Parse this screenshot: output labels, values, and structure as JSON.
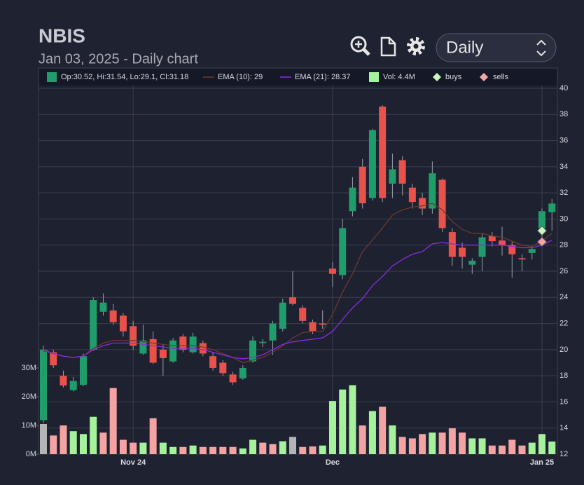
{
  "header": {
    "title": "NBIS",
    "subtitle": "Jan 03, 2025 - Daily chart",
    "select": "Daily"
  },
  "chart_data": {
    "type": "candlestick",
    "categories": [
      null,
      null,
      null,
      null,
      null,
      null,
      null,
      null,
      null,
      "Nov 24",
      null,
      null,
      null,
      null,
      null,
      null,
      null,
      null,
      null,
      null,
      null,
      null,
      null,
      null,
      null,
      null,
      null,
      null,
      null,
      "Dec",
      null,
      null,
      null,
      null,
      null,
      null,
      null,
      null,
      null,
      null,
      null,
      null,
      null,
      null,
      null,
      null,
      null,
      null,
      null,
      null,
      "Jan 25",
      null
    ],
    "open": [
      14.6,
      19.8,
      18.0,
      16.9,
      17.3,
      20.0,
      22.9,
      23.0,
      22.6,
      21.8,
      19.7,
      20.8,
      20.0,
      19.1,
      21.0,
      19.8,
      20.5,
      19.5,
      19.0,
      18.1,
      17.8,
      19.1,
      20.5,
      20.7,
      21.6,
      24.0,
      23.2,
      22.1,
      22.0,
      26.2,
      25.7,
      30.6,
      34.0,
      31.6,
      38.6,
      32.7,
      34.5,
      32.4,
      31.6,
      30.8,
      33.0,
      29.0,
      27.8,
      26.5,
      27.1,
      28.7,
      28.35,
      28.0,
      27.0,
      27.4,
      29.3,
      30.52
    ],
    "high": [
      20.3,
      20.0,
      18.4,
      17.9,
      19.7,
      24.0,
      24.3,
      23.5,
      22.8,
      22.2,
      21.9,
      21.4,
      20.4,
      20.9,
      21.2,
      21.3,
      20.7,
      19.8,
      19.2,
      18.3,
      18.8,
      21.0,
      20.8,
      22.2,
      23.9,
      26.0,
      23.4,
      22.3,
      23.0,
      26.7,
      30.0,
      33.2,
      34.6,
      36.9,
      38.7,
      35.0,
      34.8,
      32.7,
      32.0,
      34.4,
      33.1,
      29.3,
      28.2,
      27.0,
      28.9,
      29.0,
      29.4,
      28.3,
      27.3,
      27.9,
      30.8,
      31.54
    ],
    "low": [
      14.4,
      18.6,
      17.1,
      16.8,
      17.2,
      19.9,
      22.6,
      21.9,
      21.0,
      20.0,
      19.6,
      18.9,
      18.0,
      19.0,
      19.8,
      19.7,
      19.5,
      18.4,
      18.0,
      17.3,
      17.7,
      19.0,
      20.2,
      19.6,
      21.4,
      23.4,
      22.0,
      21.2,
      21.6,
      24.8,
      25.4,
      30.2,
      30.8,
      31.4,
      31.3,
      31.6,
      31.8,
      30.8,
      30.3,
      30.4,
      29.0,
      26.4,
      26.2,
      25.8,
      26.0,
      27.9,
      27.2,
      25.5,
      26.0,
      26.9,
      28.5,
      29.1
    ],
    "close": [
      20.0,
      18.8,
      17.25,
      17.6,
      19.5,
      23.8,
      23.6,
      22.1,
      21.4,
      20.3,
      20.7,
      19.0,
      19.35,
      20.7,
      20.0,
      21.0,
      19.7,
      18.6,
      18.2,
      17.5,
      18.6,
      20.7,
      20.6,
      22.0,
      23.6,
      23.5,
      22.2,
      21.4,
      21.9,
      25.8,
      29.3,
      32.4,
      31.2,
      36.8,
      31.6,
      33.8,
      32.7,
      31.3,
      30.8,
      33.5,
      29.3,
      27.1,
      27.1,
      26.8,
      28.6,
      28.3,
      28.0,
      27.3,
      26.9,
      27.7,
      30.6,
      31.18
    ],
    "colors": {
      "up": "#1f9d6b",
      "down": "#e8524a"
    },
    "ylim": [
      12,
      40
    ],
    "yticks": [
      12,
      14,
      16,
      18,
      20,
      22,
      24,
      26,
      28,
      30,
      32,
      34,
      36,
      38,
      40
    ],
    "grid": true,
    "legend": {
      "ohlc": "Op:30.52, Hi:31.54, Lo:29.1, Cl:31.18"
    },
    "series": [
      {
        "name": "EMA (10): 29",
        "color": "#6b3a2a",
        "values": [
          19.9,
          19.7,
          19.5,
          19.4,
          19.5,
          20.1,
          20.5,
          20.7,
          20.7,
          20.7,
          20.6,
          20.5,
          20.4,
          20.3,
          20.3,
          20.3,
          20.2,
          20.0,
          19.7,
          19.4,
          19.0,
          19.2,
          19.4,
          19.8,
          20.3,
          20.9,
          21.3,
          21.4,
          21.4,
          22.7,
          24.4,
          25.8,
          27.5,
          28.4,
          29.3,
          30.3,
          30.7,
          30.9,
          31.0,
          31.2,
          30.7,
          29.8,
          29.2,
          28.9,
          28.9,
          28.7,
          28.6,
          28.3,
          28.0,
          27.9,
          28.3,
          28.9
        ]
      },
      {
        "name": "EMA (21): 28.37",
        "color": "#8a2be2",
        "values": [
          20.0,
          19.7,
          19.5,
          19.4,
          19.5,
          20.0,
          20.3,
          20.5,
          20.5,
          20.5,
          20.4,
          20.3,
          20.2,
          20.1,
          20.1,
          20.1,
          20.0,
          19.8,
          19.6,
          19.4,
          19.3,
          19.4,
          19.6,
          20.0,
          20.4,
          20.6,
          20.7,
          20.8,
          20.9,
          21.4,
          22.3,
          23.2,
          23.9,
          24.9,
          25.6,
          26.4,
          26.9,
          27.3,
          27.5,
          28.1,
          28.2,
          28.1,
          28.0,
          28.0,
          28.0,
          28.0,
          28.0,
          27.9,
          27.8,
          27.8,
          28.0,
          28.37
        ]
      }
    ],
    "volume": {
      "name": "Vol: 4.4M",
      "color": "#a6f29c",
      "values": [
        10.5,
        6.5,
        10,
        8,
        7,
        13,
        7.5,
        23,
        5,
        4,
        4,
        12.5,
        4,
        2.5,
        2.5,
        3,
        2.5,
        2.5,
        2.5,
        2.5,
        2,
        5,
        4,
        3.5,
        4.5,
        6,
        2.5,
        2.7,
        3,
        18.5,
        22.5,
        24,
        10,
        15,
        16.5,
        10,
        6,
        5.5,
        7,
        7.5,
        7.5,
        9,
        7.5,
        5.5,
        5.5,
        3,
        3,
        5,
        3,
        4,
        7,
        4.4
      ],
      "colors": [
        "#b4b4b4",
        "#f4a3a3",
        "#f4a3a3",
        "#a6f29c",
        "#a6f29c",
        "#a6f29c",
        "#f4a3a3",
        "#f4a3a3",
        "#f4a3a3",
        "#f4a3a3",
        "#a6f29c",
        "#f4a3a3",
        "#a6f29c",
        "#a6f29c",
        "#f4a3a3",
        "#a6f29c",
        "#f4a3a3",
        "#f4a3a3",
        "#f4a3a3",
        "#f4a3a3",
        "#a6f29c",
        "#a6f29c",
        "#f4a3a3",
        "#f4a3a3",
        "#a6f29c",
        "#b4b4b4",
        "#f4a3a3",
        "#f4a3a3",
        "#a6f29c",
        "#a6f29c",
        "#a6f29c",
        "#a6f29c",
        "#f4a3a3",
        "#a6f29c",
        "#f4a3a3",
        "#a6f29c",
        "#f4a3a3",
        "#f4a3a3",
        "#f4a3a3",
        "#a6f29c",
        "#f4a3a3",
        "#f4a3a3",
        "#f4a3a3",
        "#a6f29c",
        "#a6f29c",
        "#f4a3a3",
        "#f4a3a3",
        "#f4a3a3",
        "#f4a3a3",
        "#a6f29c",
        "#a6f29c",
        "#a6f29c"
      ],
      "ylim": [
        0,
        30
      ],
      "yticks": [
        {
          "value": 0,
          "label": "0M"
        },
        {
          "value": 10,
          "label": "10M"
        },
        {
          "value": 20,
          "label": "20M"
        },
        {
          "value": 30,
          "label": "30M"
        }
      ]
    },
    "markers": [
      {
        "name": "buys",
        "color": "#c9f5c0",
        "indices": [
          50
        ],
        "values": [
          29.1
        ]
      },
      {
        "name": "sells",
        "color": "#f6a5a5",
        "indices": [
          50
        ],
        "values": [
          28.25
        ]
      }
    ]
  }
}
